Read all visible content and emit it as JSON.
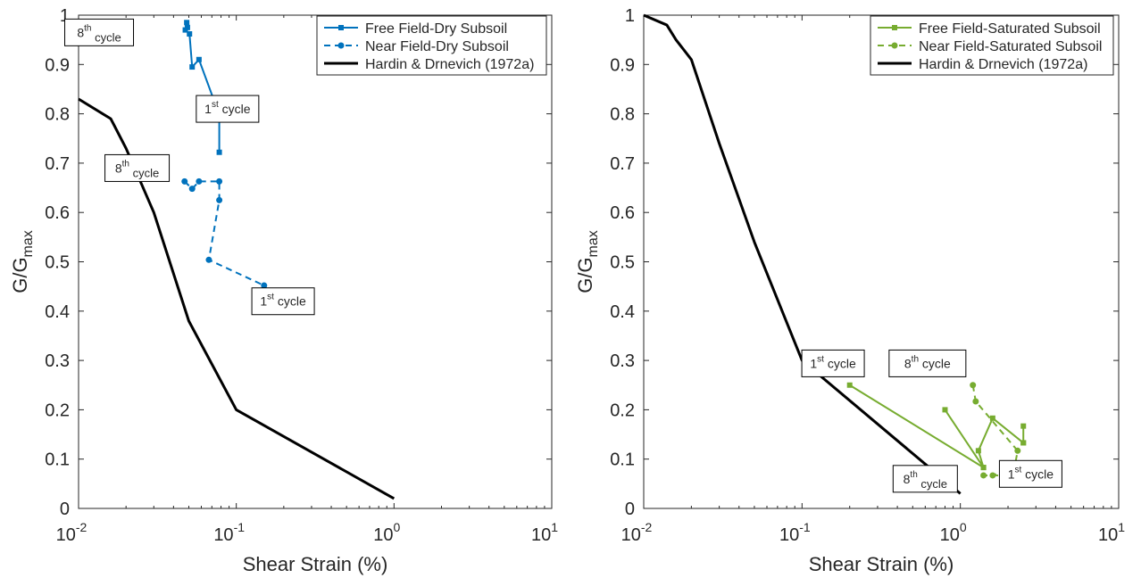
{
  "figure": {
    "background": "#ffffff",
    "axis_color": "#262626"
  },
  "chart_data": [
    {
      "type": "line",
      "xscale": "log",
      "xlim": [
        0.01,
        10
      ],
      "ylim": [
        0,
        1
      ],
      "xlabel": "Shear Strain (%)",
      "ylabel": "G/G",
      "ylabel_sub": "max",
      "xticks": [
        {
          "value": 0.01,
          "base": "10",
          "exp": "-2"
        },
        {
          "value": 0.1,
          "base": "10",
          "exp": "-1"
        },
        {
          "value": 1,
          "base": "10",
          "exp": "0"
        },
        {
          "value": 10,
          "base": "10",
          "exp": "1"
        }
      ],
      "yticks": [
        "0",
        "0.1",
        "0.2",
        "0.3",
        "0.4",
        "0.5",
        "0.6",
        "0.7",
        "0.8",
        "0.9",
        "1"
      ],
      "grid": false,
      "legend_position": "top-right",
      "series": [
        {
          "name": "Free Field-Dry Subsoil",
          "color": "#0072BD",
          "dash": "solid",
          "marker": "square",
          "x": [
            0.0485,
            0.049,
            0.0475,
            0.0505,
            0.0525,
            0.058,
            0.078,
            0.078
          ],
          "y": [
            0.985,
            0.975,
            0.97,
            0.962,
            0.895,
            0.91,
            0.798,
            0.722
          ]
        },
        {
          "name": "Near Field-Dry Subsoil",
          "color": "#0072BD",
          "dash": "dashed",
          "marker": "circle",
          "x": [
            0.047,
            0.0525,
            0.058,
            0.078,
            0.078,
            0.067,
            0.15,
            0.185
          ],
          "y": [
            0.663,
            0.648,
            0.663,
            0.663,
            0.625,
            0.504,
            0.452,
            0.407
          ]
        },
        {
          "name": "Hardin & Drnevich (1972a)",
          "color": "#000000",
          "dash": "solid",
          "marker": "none",
          "x": [
            0.01,
            0.016,
            0.02,
            0.03,
            0.05,
            0.1,
            1.0
          ],
          "y": [
            0.83,
            0.79,
            0.73,
            0.6,
            0.38,
            0.2,
            0.02
          ]
        }
      ],
      "annotations": [
        {
          "base": "8",
          "sup": "th",
          "text": " cycle",
          "style": "sub",
          "x": 0.0135,
          "y": 0.965
        },
        {
          "base": "1",
          "sup": "st",
          "text": " cycle",
          "style": "normal",
          "x": 0.088,
          "y": 0.81
        },
        {
          "base": "8",
          "sup": "th",
          "text": " cycle",
          "style": "sub",
          "x": 0.0235,
          "y": 0.69
        },
        {
          "base": "1",
          "sup": "st",
          "text": " cycle",
          "style": "normal",
          "x": 0.198,
          "y": 0.42
        }
      ]
    },
    {
      "type": "line",
      "xscale": "log",
      "xlim": [
        0.01,
        10
      ],
      "ylim": [
        0,
        1
      ],
      "xlabel": "Shear Strain (%)",
      "ylabel": "G/G",
      "ylabel_sub": "max",
      "xticks": [
        {
          "value": 0.01,
          "base": "10",
          "exp": "-2"
        },
        {
          "value": 0.1,
          "base": "10",
          "exp": "-1"
        },
        {
          "value": 1,
          "base": "10",
          "exp": "0"
        },
        {
          "value": 10,
          "base": "10",
          "exp": "1"
        }
      ],
      "yticks": [
        "0",
        "0.1",
        "0.2",
        "0.3",
        "0.4",
        "0.5",
        "0.6",
        "0.7",
        "0.8",
        "0.9",
        "1"
      ],
      "grid": false,
      "legend_position": "top-right",
      "series": [
        {
          "name": "Free Field-Saturated Subsoil",
          "color": "#77AC30",
          "dash": "solid",
          "marker": "square",
          "x": [
            0.2,
            1.4,
            0.8,
            1.4,
            1.3,
            1.6,
            2.5,
            2.5,
            2.5
          ],
          "y": [
            0.25,
            0.083,
            0.2,
            0.083,
            0.117,
            0.183,
            0.133,
            0.167,
            0.133
          ]
        },
        {
          "name": "Near Field-Saturated Subsoil",
          "color": "#77AC30",
          "dash": "dashed",
          "marker": "circle",
          "x": [
            1.2,
            1.25,
            2.3,
            2.2,
            1.6,
            1.4,
            2.5,
            2.55
          ],
          "y": [
            0.25,
            0.217,
            0.117,
            0.083,
            0.067,
            0.067,
            0.067,
            0.05
          ]
        },
        {
          "name": "Hardin & Drnevich (1972a)",
          "color": "#000000",
          "dash": "solid",
          "marker": "none",
          "x": [
            0.01,
            0.014,
            0.016,
            0.02,
            0.03,
            0.05,
            0.1,
            1.0
          ],
          "y": [
            1.0,
            0.98,
            0.95,
            0.91,
            0.74,
            0.54,
            0.3,
            0.03
          ]
        }
      ],
      "annotations": [
        {
          "base": "1",
          "sup": "st",
          "text": " cycle",
          "style": "normal",
          "x": 0.157,
          "y": 0.294
        },
        {
          "base": "8",
          "sup": "th",
          "text": " cycle",
          "style": "normal",
          "x": 0.62,
          "y": 0.294
        },
        {
          "base": "8",
          "sup": "th",
          "text": " cycle",
          "style": "sub",
          "x": 0.6,
          "y": 0.06
        },
        {
          "base": "1",
          "sup": "st",
          "text": " cycle",
          "style": "normal",
          "x": 2.78,
          "y": 0.07
        }
      ]
    }
  ]
}
